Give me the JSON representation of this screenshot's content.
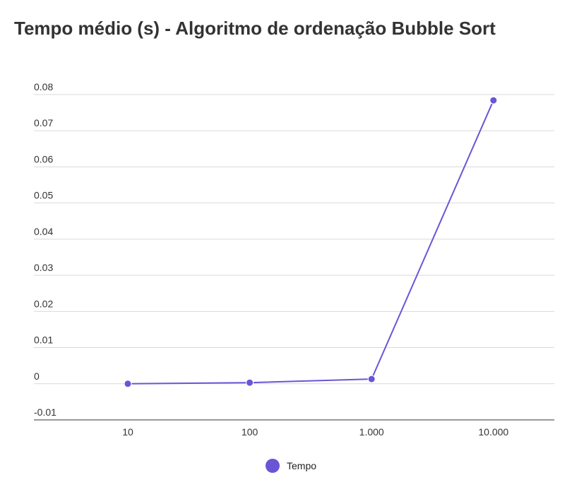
{
  "chart_data": {
    "type": "line",
    "title": "Tempo médio (s) - Algoritmo de ordenação Bubble Sort",
    "xlabel": "",
    "ylabel": "",
    "categories": [
      "10",
      "100",
      "1.000",
      "10.000"
    ],
    "series": [
      {
        "name": "Tempo",
        "values": [
          0.0,
          0.0003,
          0.0013,
          0.0784
        ],
        "color": "#6a55d6"
      }
    ],
    "ylim": [
      -0.01,
      0.08
    ],
    "yticks": [
      -0.01,
      0,
      0.01,
      0.02,
      0.03,
      0.04,
      0.05,
      0.06,
      0.07,
      0.08
    ],
    "ytick_labels": [
      "-0.01",
      "0",
      "0.01",
      "0.02",
      "0.03",
      "0.04",
      "0.05",
      "0.06",
      "0.07",
      "0.08"
    ],
    "grid": true,
    "legend_position": "bottom"
  }
}
